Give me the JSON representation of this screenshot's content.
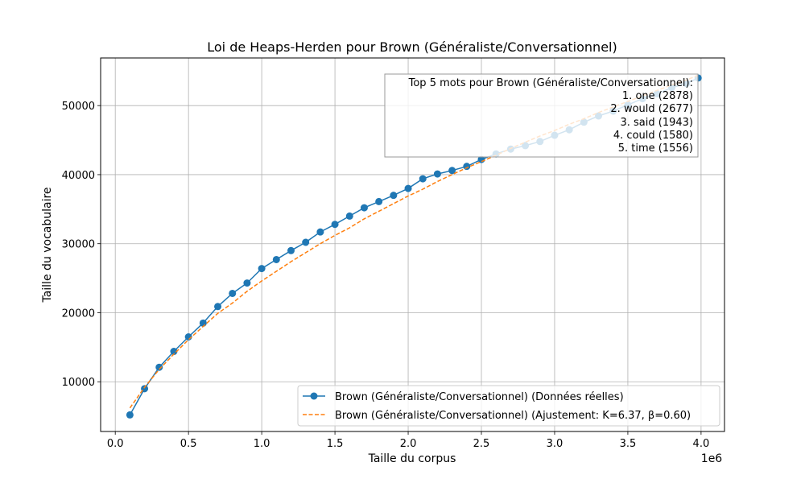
{
  "chart_data": {
    "type": "line",
    "title": "Loi de Heaps-Herden pour Brown (Généraliste/Conversationnel)",
    "xlabel": "Taille du corpus",
    "ylabel": "Taille du vocabulaire",
    "x_offset_label": "1e6",
    "xlim": [
      -0.1,
      4.16
    ],
    "ylim": [
      2800,
      56900
    ],
    "x_ticks": [
      0.0,
      0.5,
      1.0,
      1.5,
      2.0,
      2.5,
      3.0,
      3.5,
      4.0
    ],
    "x_tick_labels": [
      "0.0",
      "0.5",
      "1.0",
      "1.5",
      "2.0",
      "2.5",
      "3.0",
      "3.5",
      "4.0"
    ],
    "y_ticks": [
      10000,
      20000,
      30000,
      40000,
      50000
    ],
    "y_tick_labels": [
      "10000",
      "20000",
      "30000",
      "40000",
      "50000"
    ],
    "grid": true,
    "legend_position": "lower-right",
    "series": [
      {
        "name": "Brown (Généraliste/Conversationnel) (Données réelles)",
        "style": "solid-markers",
        "color": "#1f77b4",
        "x": [
          0.1,
          0.2,
          0.3,
          0.4,
          0.5,
          0.6,
          0.7,
          0.8,
          0.9,
          1.0,
          1.1,
          1.2,
          1.3,
          1.4,
          1.5,
          1.6,
          1.7,
          1.8,
          1.9,
          2.0,
          2.1,
          2.2,
          2.3,
          2.4,
          2.5,
          2.6,
          2.7,
          2.8,
          2.9,
          3.0,
          3.1,
          3.2,
          3.3,
          3.4,
          3.5,
          3.6,
          3.7,
          3.8,
          3.9,
          3.98
        ],
        "y": [
          5200,
          9000,
          12100,
          14400,
          16500,
          18500,
          20900,
          22800,
          24300,
          26400,
          27700,
          29000,
          30200,
          31700,
          32800,
          34000,
          35200,
          36100,
          37000,
          38000,
          39400,
          40100,
          40600,
          41200,
          42200,
          43000,
          43700,
          44200,
          44800,
          45700,
          46500,
          47600,
          48500,
          49200,
          50100,
          51000,
          51700,
          52600,
          53200,
          54000
        ]
      },
      {
        "name": "Brown (Généraliste/Conversationnel) (Ajustement: K=6.37, β=0.60)",
        "style": "dashed",
        "color": "#ff7f0e",
        "x": [
          0.1,
          0.2,
          0.3,
          0.4,
          0.5,
          0.6,
          0.7,
          0.8,
          0.9,
          1.0,
          1.1,
          1.2,
          1.3,
          1.4,
          1.5,
          1.6,
          1.7,
          1.8,
          1.9,
          2.0,
          2.1,
          2.2,
          2.3,
          2.4,
          2.5,
          2.6,
          2.7,
          2.8,
          2.9,
          3.0,
          3.1,
          3.2,
          3.3,
          3.4,
          3.5,
          3.6,
          3.7,
          3.8,
          3.9,
          3.98
        ],
        "y": [
          6200,
          9200,
          11800,
          14000,
          16100,
          18000,
          19900,
          21400,
          23100,
          24600,
          26000,
          27400,
          28700,
          30000,
          31200,
          32300,
          33600,
          34700,
          35800,
          36900,
          37900,
          39000,
          40000,
          41000,
          41900,
          42800,
          43800,
          44700,
          45600,
          46400,
          47300,
          48100,
          49000,
          49800,
          50600,
          51400,
          52200,
          53000,
          53700,
          54400
        ]
      }
    ],
    "annotation": {
      "title": "Top 5 mots pour Brown (Généraliste/Conversationnel):",
      "lines": [
        "1. one (2878)",
        "2. would (2677)",
        "3. said (1943)",
        "4. could (1580)",
        "5. time (1556)"
      ]
    }
  }
}
